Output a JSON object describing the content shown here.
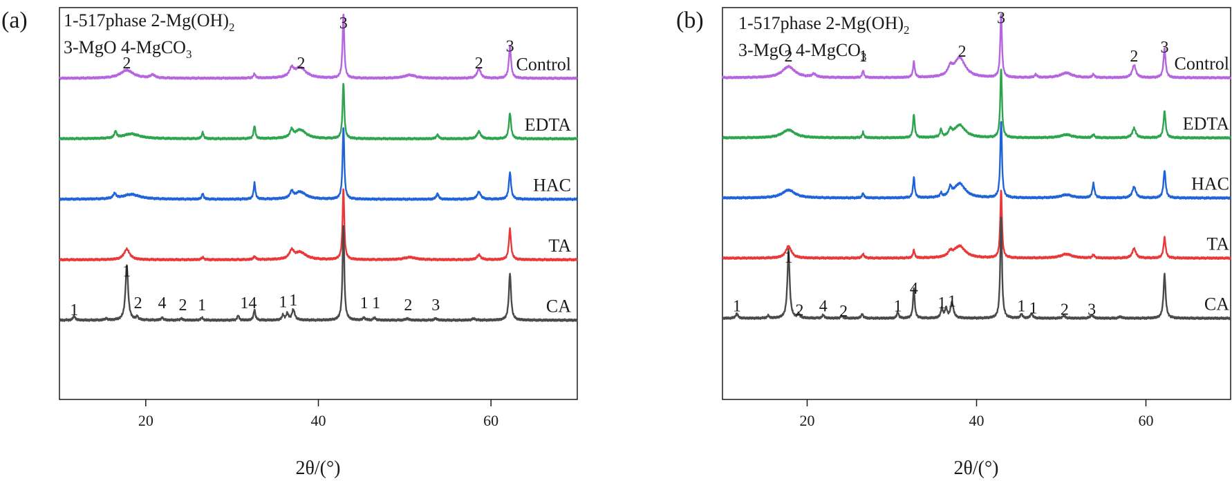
{
  "chart_data": [
    {
      "type": "line",
      "panel_label": "(a)",
      "legend_lines": [
        [
          "1-517phase 2-Mg(OH)",
          "2",
          ""
        ],
        [
          "3-MgO   4-MgCO",
          "3",
          ""
        ]
      ],
      "xlabel": "2θ/(°)",
      "ylabel": "",
      "xlim": [
        10,
        70
      ],
      "xticks": [
        20,
        40,
        60
      ],
      "series": [
        {
          "name": "Control",
          "color": "#b565e0",
          "offset": 4,
          "baseline": 0.1,
          "peaks": [
            [
              17.8,
              0.1,
              0.9
            ],
            [
              20.8,
              0.04,
              0.3
            ],
            [
              32.6,
              0.05,
              0.15
            ],
            [
              36.9,
              0.1,
              0.3
            ],
            [
              37.9,
              0.13,
              0.8
            ],
            [
              42.9,
              0.8,
              0.12
            ],
            [
              50.6,
              0.04,
              0.8
            ],
            [
              58.6,
              0.12,
              0.25
            ],
            [
              62.2,
              0.4,
              0.15
            ]
          ]
        },
        {
          "name": "EDTA",
          "color": "#2ea44f",
          "offset": 3,
          "baseline": 0.1,
          "peaks": [
            [
              16.5,
              0.08,
              0.15
            ],
            [
              18.3,
              0.06,
              1.2
            ],
            [
              26.6,
              0.08,
              0.12
            ],
            [
              32.6,
              0.16,
              0.12
            ],
            [
              36.9,
              0.09,
              0.2
            ],
            [
              37.9,
              0.11,
              0.8
            ],
            [
              42.9,
              0.7,
              0.12
            ],
            [
              53.8,
              0.05,
              0.15
            ],
            [
              58.6,
              0.09,
              0.25
            ],
            [
              62.2,
              0.32,
              0.15
            ]
          ]
        },
        {
          "name": "HAC",
          "color": "#1f63d6",
          "offset": 2,
          "baseline": 0.1,
          "peaks": [
            [
              16.4,
              0.06,
              0.2
            ],
            [
              18.3,
              0.06,
              1.2
            ],
            [
              26.6,
              0.07,
              0.12
            ],
            [
              32.6,
              0.2,
              0.12
            ],
            [
              36.9,
              0.08,
              0.2
            ],
            [
              37.9,
              0.09,
              0.8
            ],
            [
              42.9,
              0.9,
              0.12
            ],
            [
              53.8,
              0.07,
              0.15
            ],
            [
              58.6,
              0.09,
              0.25
            ],
            [
              62.2,
              0.33,
              0.15
            ]
          ]
        },
        {
          "name": "TA",
          "color": "#e8383a",
          "offset": 1,
          "baseline": 0.1,
          "peaks": [
            [
              17.8,
              0.13,
              0.4
            ],
            [
              26.6,
              0.03,
              0.15
            ],
            [
              32.6,
              0.04,
              0.15
            ],
            [
              36.9,
              0.1,
              0.3
            ],
            [
              37.9,
              0.09,
              0.8
            ],
            [
              42.9,
              0.88,
              0.12
            ],
            [
              50.6,
              0.03,
              0.8
            ],
            [
              58.6,
              0.06,
              0.25
            ],
            [
              62.2,
              0.38,
              0.15
            ]
          ]
        },
        {
          "name": "CA",
          "color": "#4a4a4a",
          "offset": 0,
          "baseline": 0.1,
          "peaks": [
            [
              11.7,
              0.05,
              0.15
            ],
            [
              15.4,
              0.02,
              0.15
            ],
            [
              17.8,
              0.68,
              0.18
            ],
            [
              19.0,
              0.04,
              0.15
            ],
            [
              21.9,
              0.03,
              0.15
            ],
            [
              24.1,
              0.02,
              0.15
            ],
            [
              26.5,
              0.03,
              0.15
            ],
            [
              30.7,
              0.06,
              0.12
            ],
            [
              32.6,
              0.13,
              0.12
            ],
            [
              35.9,
              0.06,
              0.15
            ],
            [
              36.4,
              0.08,
              0.15
            ],
            [
              37.1,
              0.13,
              0.2
            ],
            [
              42.9,
              1.2,
              0.12
            ],
            [
              45.3,
              0.03,
              0.15
            ],
            [
              46.5,
              0.03,
              0.15
            ],
            [
              50.3,
              0.02,
              0.2
            ],
            [
              53.6,
              0.02,
              0.2
            ],
            [
              58.0,
              0.02,
              0.2
            ],
            [
              62.2,
              0.58,
              0.15
            ]
          ]
        }
      ],
      "annotations": [
        {
          "text": "3",
          "x": 42.9,
          "y": 4.96
        },
        {
          "text": "2",
          "x": 17.8,
          "y": 4.3
        },
        {
          "text": "2",
          "x": 38.0,
          "y": 4.3
        },
        {
          "text": "2",
          "x": 58.6,
          "y": 4.3
        },
        {
          "text": "3",
          "x": 62.2,
          "y": 4.58
        },
        {
          "text": "1",
          "x": 17.8,
          "y": 0.86
        },
        {
          "text": "1",
          "x": 11.7,
          "y": 0.22
        },
        {
          "text": "2",
          "x": 19.1,
          "y": 0.33
        },
        {
          "text": "4",
          "x": 21.9,
          "y": 0.33
        },
        {
          "text": "2",
          "x": 24.3,
          "y": 0.3
        },
        {
          "text": "1",
          "x": 26.5,
          "y": 0.3
        },
        {
          "text": "14",
          "x": 31.9,
          "y": 0.33
        },
        {
          "text": "1",
          "x": 35.9,
          "y": 0.35
        },
        {
          "text": "1",
          "x": 37.1,
          "y": 0.38
        },
        {
          "text": "1",
          "x": 45.3,
          "y": 0.33
        },
        {
          "text": "1",
          "x": 46.7,
          "y": 0.33
        },
        {
          "text": "2",
          "x": 50.4,
          "y": 0.3
        },
        {
          "text": "3",
          "x": 53.6,
          "y": 0.3
        }
      ]
    },
    {
      "type": "line",
      "panel_label": "(b)",
      "legend_lines": [
        [
          "1-517phase 2-Mg(OH)",
          "2",
          ""
        ],
        [
          "3-MgO   4-MgCO",
          "3",
          ""
        ]
      ],
      "xlabel": "2θ/(°)",
      "ylabel": "",
      "xlim": [
        10,
        70
      ],
      "xticks": [
        20,
        40,
        60
      ],
      "series": [
        {
          "name": "Control",
          "color": "#b565e0",
          "offset": 4,
          "baseline": 0.1,
          "peaks": [
            [
              17.8,
              0.14,
              0.9
            ],
            [
              20.8,
              0.04,
              0.3
            ],
            [
              26.6,
              0.09,
              0.12
            ],
            [
              32.6,
              0.2,
              0.12
            ],
            [
              36.9,
              0.1,
              0.3
            ],
            [
              38.0,
              0.25,
              0.8
            ],
            [
              42.9,
              0.8,
              0.12
            ],
            [
              47.0,
              0.04,
              0.15
            ],
            [
              50.6,
              0.06,
              0.8
            ],
            [
              53.8,
              0.04,
              0.15
            ],
            [
              58.6,
              0.16,
              0.25
            ],
            [
              62.2,
              0.37,
              0.15
            ]
          ]
        },
        {
          "name": "EDTA",
          "color": "#2ea44f",
          "offset": 3,
          "baseline": 0.1,
          "peaks": [
            [
              17.8,
              0.1,
              0.9
            ],
            [
              26.6,
              0.07,
              0.12
            ],
            [
              32.6,
              0.3,
              0.12
            ],
            [
              35.8,
              0.1,
              0.12
            ],
            [
              36.9,
              0.08,
              0.2
            ],
            [
              38.0,
              0.16,
              0.8
            ],
            [
              42.9,
              0.88,
              0.12
            ],
            [
              50.6,
              0.04,
              0.8
            ],
            [
              53.8,
              0.04,
              0.15
            ],
            [
              58.6,
              0.12,
              0.25
            ],
            [
              62.2,
              0.34,
              0.15
            ]
          ]
        },
        {
          "name": "HAC",
          "color": "#1f63d6",
          "offset": 2,
          "baseline": 0.1,
          "peaks": [
            [
              17.8,
              0.1,
              0.9
            ],
            [
              26.6,
              0.06,
              0.12
            ],
            [
              32.6,
              0.26,
              0.12
            ],
            [
              35.8,
              0.05,
              0.12
            ],
            [
              36.9,
              0.1,
              0.2
            ],
            [
              38.0,
              0.18,
              0.8
            ],
            [
              42.9,
              0.98,
              0.12
            ],
            [
              50.6,
              0.04,
              0.8
            ],
            [
              53.8,
              0.18,
              0.15
            ],
            [
              58.6,
              0.14,
              0.25
            ],
            [
              62.2,
              0.35,
              0.15
            ]
          ]
        },
        {
          "name": "TA",
          "color": "#e8383a",
          "offset": 1,
          "baseline": 0.1,
          "peaks": [
            [
              17.8,
              0.15,
              0.4
            ],
            [
              26.6,
              0.05,
              0.15
            ],
            [
              32.6,
              0.1,
              0.12
            ],
            [
              36.9,
              0.06,
              0.3
            ],
            [
              38.0,
              0.15,
              0.8
            ],
            [
              42.9,
              0.86,
              0.12
            ],
            [
              50.6,
              0.05,
              0.8
            ],
            [
              53.8,
              0.04,
              0.15
            ],
            [
              58.6,
              0.12,
              0.25
            ],
            [
              62.2,
              0.26,
              0.15
            ]
          ]
        },
        {
          "name": "CA",
          "color": "#4a4a4a",
          "offset": 0,
          "baseline": 0.1,
          "peaks": [
            [
              11.7,
              0.06,
              0.15
            ],
            [
              15.4,
              0.03,
              0.15
            ],
            [
              17.8,
              0.86,
              0.16
            ],
            [
              19.0,
              0.05,
              0.15
            ],
            [
              21.9,
              0.04,
              0.15
            ],
            [
              24.1,
              0.03,
              0.15
            ],
            [
              26.5,
              0.05,
              0.15
            ],
            [
              30.7,
              0.08,
              0.12
            ],
            [
              32.6,
              0.38,
              0.12
            ],
            [
              35.9,
              0.12,
              0.15
            ],
            [
              36.4,
              0.12,
              0.15
            ],
            [
              37.1,
              0.2,
              0.2
            ],
            [
              42.9,
              1.3,
              0.12
            ],
            [
              45.3,
              0.05,
              0.15
            ],
            [
              46.5,
              0.06,
              0.15
            ],
            [
              50.3,
              0.03,
              0.2
            ],
            [
              53.6,
              0.04,
              0.2
            ],
            [
              57.0,
              0.02,
              0.2
            ],
            [
              62.2,
              0.56,
              0.15
            ]
          ]
        }
      ],
      "annotations": [
        {
          "text": "3",
          "x": 42.9,
          "y": 5.04
        },
        {
          "text": "2",
          "x": 17.8,
          "y": 4.4
        },
        {
          "text": "1",
          "x": 26.6,
          "y": 4.4
        },
        {
          "text": "2",
          "x": 38.3,
          "y": 4.48
        },
        {
          "text": "2",
          "x": 58.6,
          "y": 4.4
        },
        {
          "text": "3",
          "x": 62.2,
          "y": 4.55
        },
        {
          "text": "1",
          "x": 17.8,
          "y": 1.06
        },
        {
          "text": "1",
          "x": 11.7,
          "y": 0.25
        },
        {
          "text": "2",
          "x": 19.1,
          "y": 0.18
        },
        {
          "text": "4",
          "x": 21.9,
          "y": 0.25
        },
        {
          "text": "2",
          "x": 24.3,
          "y": 0.16
        },
        {
          "text": "1",
          "x": 30.7,
          "y": 0.25
        },
        {
          "text": "4",
          "x": 32.6,
          "y": 0.54
        },
        {
          "text": "1",
          "x": 35.9,
          "y": 0.3
        },
        {
          "text": "1",
          "x": 37.1,
          "y": 0.33
        },
        {
          "text": "1",
          "x": 45.3,
          "y": 0.25
        },
        {
          "text": "1",
          "x": 46.7,
          "y": 0.21
        },
        {
          "text": "2",
          "x": 50.4,
          "y": 0.19
        },
        {
          "text": "3",
          "x": 53.6,
          "y": 0.19
        }
      ]
    }
  ]
}
